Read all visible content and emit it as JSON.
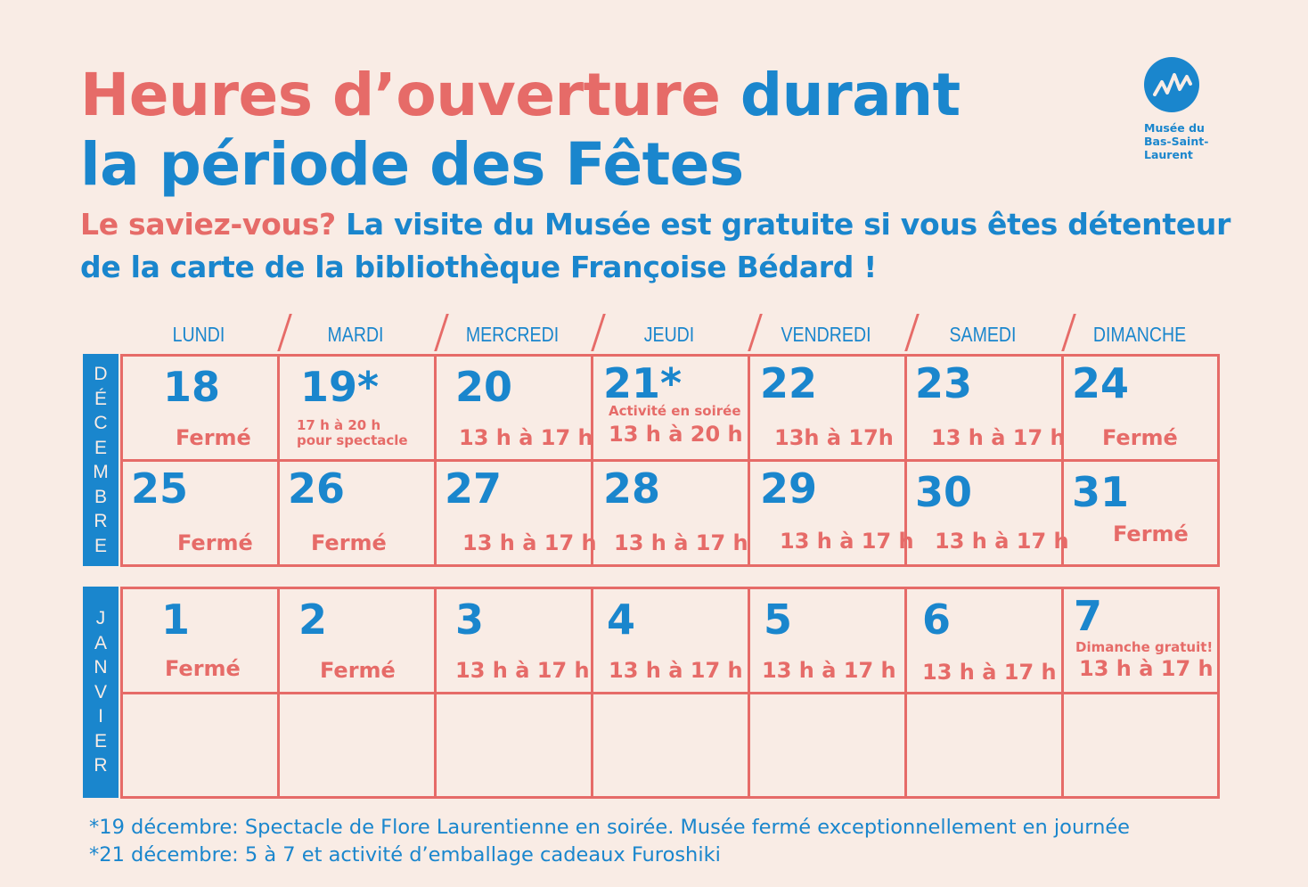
{
  "header": {
    "title_part1": "Heures d’ouverture",
    "title_part2": " durant",
    "title_line2": "la période des Fêtes",
    "subtitle_part1": "Le saviez-vous?",
    "subtitle_part2": " La visite du Musée est gratuite si vous êtes détenteur",
    "subtitle_line2": "de la carte de la bibliothèque Françoise Bédard !"
  },
  "logo": {
    "line1": "Musée du",
    "line2": "Bas-Saint-",
    "line3": "Laurent",
    "icon": "museum-wave-logo"
  },
  "days": [
    "LUNDI",
    "MARDI",
    "MERCREDI",
    "JEUDI",
    "VENDREDI",
    "SAMEDI",
    "DIMANCHE"
  ],
  "months": {
    "decembre": "DÉCEMBRE",
    "janvier": "JANVIER"
  },
  "december": [
    [
      {
        "num": "18",
        "hours": "Fermé"
      },
      {
        "num": "19*",
        "note": "17 h à 20 h",
        "note2": "pour spectacle"
      },
      {
        "num": "20",
        "hours": "13 h à 17 h"
      },
      {
        "num": "21*",
        "note": "Activité en soirée",
        "hours": "13 h à 20 h"
      },
      {
        "num": "22",
        "hours": "13h à 17h"
      },
      {
        "num": "23",
        "hours": "13 h à 17 h"
      },
      {
        "num": "24",
        "hours": "Fermé"
      }
    ],
    [
      {
        "num": "25",
        "hours": "Fermé"
      },
      {
        "num": "26",
        "hours": "Fermé"
      },
      {
        "num": "27",
        "hours": "13 h à 17 h"
      },
      {
        "num": "28",
        "hours": "13 h à 17 h"
      },
      {
        "num": "29",
        "hours": "13 h à 17 h"
      },
      {
        "num": "30",
        "hours": "13 h à 17 h"
      },
      {
        "num": "31",
        "hours": "Fermé"
      }
    ]
  ],
  "january": [
    {
      "num": "1",
      "hours": "Fermé"
    },
    {
      "num": "2",
      "hours": "Fermé"
    },
    {
      "num": "3",
      "hours": "13 h à 17 h"
    },
    {
      "num": "4",
      "hours": "13 h à 17 h"
    },
    {
      "num": "5",
      "hours": "13 h à 17 h"
    },
    {
      "num": "6",
      "hours": "13 h à 17 h"
    },
    {
      "num": "7",
      "note": "Dimanche gratuit!",
      "hours": "13 h à 17 h"
    }
  ],
  "footnotes": [
    "*19 décembre: Spectacle de Flore Laurentienne en soirée. Musée fermé exceptionnellement en journée",
    "*21 décembre: 5 à 7 et activité d’emballage cadeaux Furoshiki"
  ],
  "colors": {
    "background": "#f9ece5",
    "coral": "#e66b68",
    "blue": "#1a86cd"
  }
}
